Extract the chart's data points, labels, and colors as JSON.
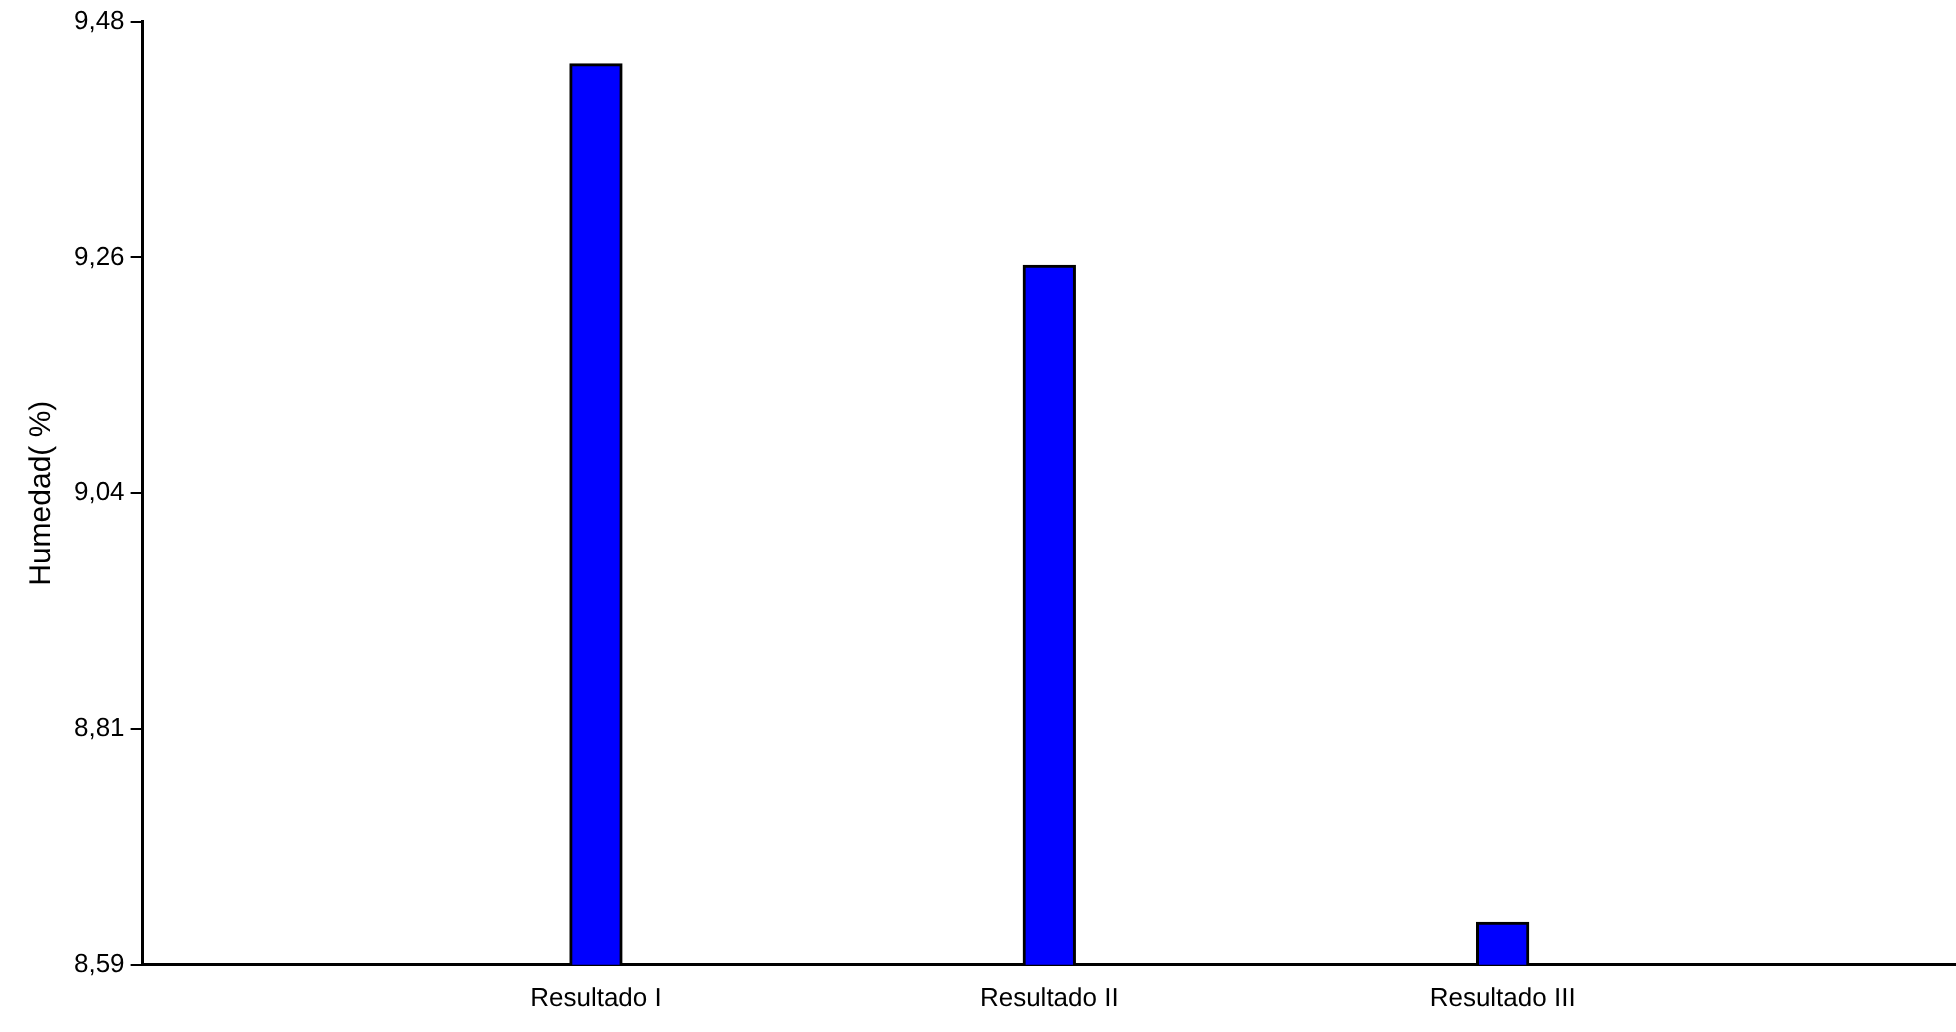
{
  "chart_data": {
    "type": "bar",
    "ylabel": "Humedad( %)",
    "categories": [
      "Resultado I",
      "Resultado II",
      "Resultado III"
    ],
    "values": [
      9.44,
      9.25,
      8.63
    ],
    "color": "#0000ff",
    "ylim": [
      8.59,
      9.48
    ],
    "yticks": [
      {
        "value": 8.59,
        "label": "8,59"
      },
      {
        "value": 8.8125,
        "label": "8,81"
      },
      {
        "value": 9.035,
        "label": "9,04"
      },
      {
        "value": 9.2575,
        "label": "9,26"
      },
      {
        "value": 9.48,
        "label": "9,48"
      }
    ],
    "grid": false,
    "legend": false
  }
}
